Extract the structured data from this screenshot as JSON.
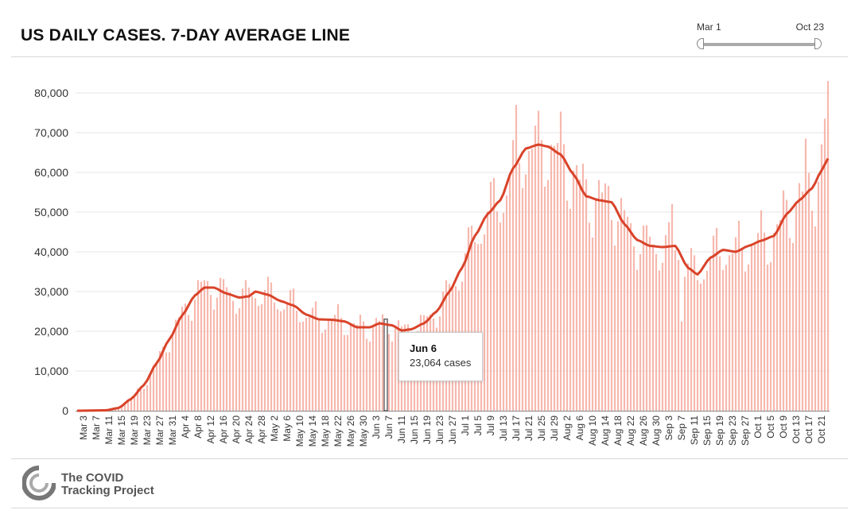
{
  "header": {
    "title": "US DAILY CASES. 7-DAY AVERAGE LINE"
  },
  "range": {
    "start_label": "Mar 1",
    "end_label": "Oct 23"
  },
  "tooltip": {
    "date": "Jun 6",
    "value": "23,064 cases"
  },
  "footer": {
    "org_line1": "The COVID",
    "org_line2": "Tracking Project"
  },
  "colors": {
    "bar": "#f7b8ae",
    "line": "#d9432a",
    "highlight": "#444444",
    "grid": "#e6e6e6"
  },
  "chart_data": {
    "type": "bar",
    "title": "US DAILY CASES. 7-DAY AVERAGE LINE",
    "xlabel": "",
    "ylabel": "",
    "ylim": [
      0,
      80000
    ],
    "yticks": [
      0,
      10000,
      20000,
      30000,
      40000,
      50000,
      60000,
      70000,
      80000
    ],
    "ytick_labels": [
      "0",
      "10,000",
      "20,000",
      "30,000",
      "40,000",
      "50,000",
      "60,000",
      "70,000",
      "80,000"
    ],
    "x_start": "Mar 1",
    "x_end": "Oct 23",
    "num_days": 237,
    "xtick_labels": [
      "Mar 3",
      "Mar 7",
      "Mar 11",
      "Mar 15",
      "Mar 19",
      "Mar 23",
      "Mar 27",
      "Mar 31",
      "Apr 4",
      "Apr 8",
      "Apr 12",
      "Apr 16",
      "Apr 20",
      "Apr 24",
      "Apr 28",
      "May 2",
      "May 6",
      "May 10",
      "May 14",
      "May 18",
      "May 22",
      "May 26",
      "May 30",
      "Jun 3",
      "Jun 7",
      "Jun 11",
      "Jun 15",
      "Jun 19",
      "Jun 23",
      "Jun 27",
      "Jul 1",
      "Jul 5",
      "Jul 9",
      "Jul 13",
      "Jul 17",
      "Jul 21",
      "Jul 25",
      "Jul 29",
      "Aug 2",
      "Aug 6",
      "Aug 10",
      "Aug 14",
      "Aug 18",
      "Aug 22",
      "Aug 26",
      "Aug 30",
      "Sep 3",
      "Sep 7",
      "Sep 11",
      "Sep 15",
      "Sep 19",
      "Sep 23",
      "Sep 27",
      "Oct 1",
      "Oct 5",
      "Oct 9",
      "Oct 13",
      "Oct 17",
      "Oct 21"
    ],
    "highlight": {
      "date": "Jun 6",
      "value": 23064
    },
    "series": [
      {
        "name": "7-day average",
        "type": "line",
        "knots": [
          [
            "Mar 1",
            0
          ],
          [
            "Mar 10",
            100
          ],
          [
            "Mar 14",
            700
          ],
          [
            "Mar 18",
            3000
          ],
          [
            "Mar 22",
            6500
          ],
          [
            "Mar 26",
            12000
          ],
          [
            "Mar 30",
            18000
          ],
          [
            "Apr 3",
            24000
          ],
          [
            "Apr 7",
            29000
          ],
          [
            "Apr 10",
            31000
          ],
          [
            "Apr 13",
            31000
          ],
          [
            "Apr 17",
            29500
          ],
          [
            "Apr 21",
            28500
          ],
          [
            "Apr 24",
            28800
          ],
          [
            "Apr 26",
            30000
          ],
          [
            "Apr 30",
            29200
          ],
          [
            "May 4",
            27600
          ],
          [
            "May 8",
            26500
          ],
          [
            "May 12",
            24200
          ],
          [
            "May 16",
            23000
          ],
          [
            "May 20",
            22900
          ],
          [
            "May 24",
            22500
          ],
          [
            "May 28",
            21000
          ],
          [
            "Jun 1",
            21000
          ],
          [
            "Jun 4",
            22000
          ],
          [
            "Jun 8",
            21500
          ],
          [
            "Jun 11",
            20200
          ],
          [
            "Jun 14",
            20500
          ],
          [
            "Jun 18",
            22000
          ],
          [
            "Jun 22",
            25000
          ],
          [
            "Jun 26",
            30000
          ],
          [
            "Jun 30",
            36000
          ],
          [
            "Jul 4",
            44000
          ],
          [
            "Jul 8",
            49500
          ],
          [
            "Jul 12",
            53000
          ],
          [
            "Jul 16",
            61000
          ],
          [
            "Jul 20",
            66000
          ],
          [
            "Jul 24",
            67000
          ],
          [
            "Jul 27",
            66500
          ],
          [
            "Jul 31",
            64500
          ],
          [
            "Aug 4",
            59500
          ],
          [
            "Aug 8",
            54000
          ],
          [
            "Aug 12",
            53000
          ],
          [
            "Aug 16",
            52500
          ],
          [
            "Aug 20",
            47000
          ],
          [
            "Aug 24",
            43000
          ],
          [
            "Aug 28",
            41500
          ],
          [
            "Sep 1",
            41200
          ],
          [
            "Sep 5",
            41500
          ],
          [
            "Sep 9",
            36000
          ],
          [
            "Sep 12",
            34300
          ],
          [
            "Sep 16",
            38500
          ],
          [
            "Sep 20",
            40500
          ],
          [
            "Sep 24",
            40000
          ],
          [
            "Sep 28",
            41500
          ],
          [
            "Oct 2",
            42800
          ],
          [
            "Oct 6",
            44000
          ],
          [
            "Oct 10",
            49500
          ],
          [
            "Oct 14",
            53000
          ],
          [
            "Oct 18",
            56000
          ],
          [
            "Oct 21",
            60500
          ],
          [
            "Oct 23",
            63500
          ]
        ]
      },
      {
        "name": "Daily cases",
        "type": "bar",
        "weekly_pattern": [
          0.9,
          0.86,
          0.96,
          1.05,
          1.09,
          1.12,
          1.02
        ],
        "overrides": {
          "Jul 17": 77000,
          "Jul 24": 75500,
          "Oct 16": 68500,
          "Oct 23": 83000,
          "Oct 22": 73500,
          "Sep 4": 52000,
          "Sep 7": 22500
        }
      }
    ]
  }
}
